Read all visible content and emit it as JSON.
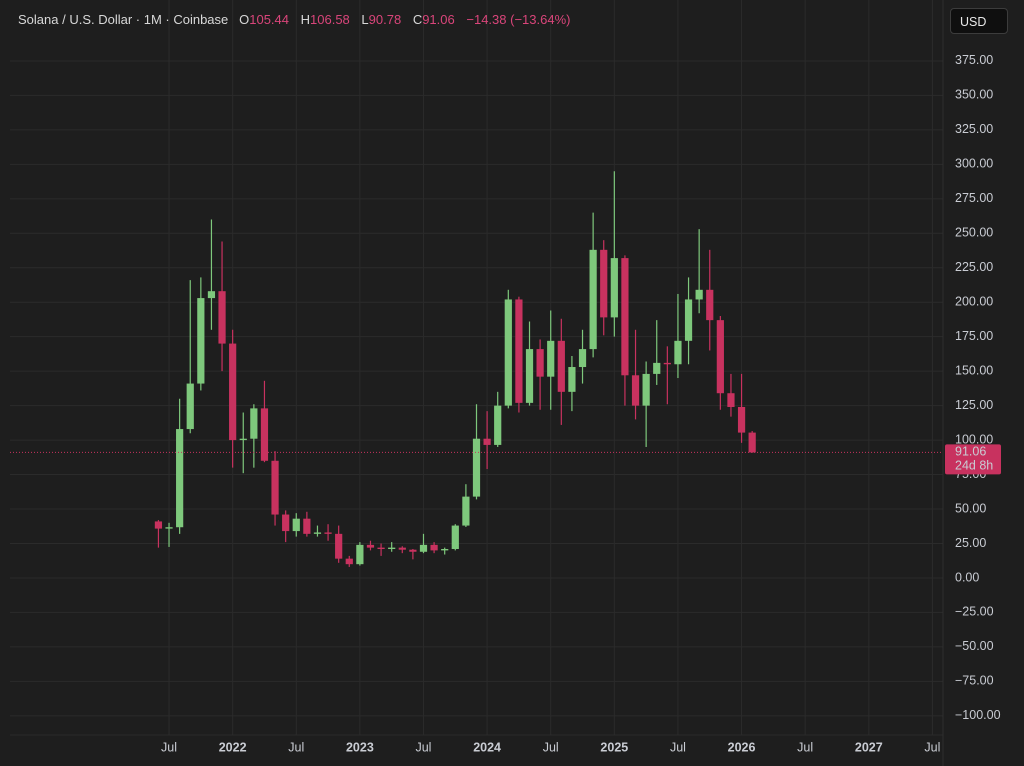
{
  "chart_data": {
    "type": "candlestick",
    "legend": {
      "title": "Solana / U.S. Dollar · 1M · Coinbase",
      "fields": [
        {
          "label": "O",
          "value": 105.44
        },
        {
          "label": "H",
          "value": 106.58
        },
        {
          "label": "L",
          "value": 90.78
        },
        {
          "label": "C",
          "value": 91.06
        }
      ],
      "change": "−14.38 (−13.64%)"
    },
    "currency": "USD",
    "price_label": {
      "value": 91.06,
      "label": "91.06",
      "countdown": "24d 8h"
    },
    "up_color": "#7ec87c",
    "down_color": "#c8325f",
    "grid": true,
    "x": [
      "2021-06",
      "2021-07",
      "2021-08",
      "2021-09",
      "2021-10",
      "2021-11",
      "2021-12",
      "2022-01",
      "2022-02",
      "2022-03",
      "2022-04",
      "2022-05",
      "2022-06",
      "2022-07",
      "2022-08",
      "2022-09",
      "2022-10",
      "2022-11",
      "2022-12",
      "2023-01",
      "2023-02",
      "2023-03",
      "2023-04",
      "2023-05",
      "2023-06",
      "2023-07",
      "2023-08",
      "2023-09",
      "2023-10",
      "2023-11",
      "2023-12",
      "2024-01",
      "2024-02",
      "2024-03",
      "2024-04",
      "2024-05",
      "2024-06",
      "2024-07",
      "2024-08",
      "2024-09",
      "2024-10",
      "2024-11",
      "2024-12",
      "2025-01",
      "2025-02",
      "2025-03",
      "2025-04",
      "2025-05",
      "2025-06",
      "2025-07",
      "2025-08",
      "2025-09",
      "2025-10",
      "2025-11",
      "2025-12",
      "2026-01",
      "2026-02"
    ],
    "open": [
      41,
      35.8,
      36.8,
      108,
      141,
      203,
      208,
      170,
      100,
      101,
      123,
      85,
      46,
      34,
      43,
      32,
      33,
      32,
      14,
      10,
      24,
      22,
      21,
      22,
      20.5,
      19,
      24,
      20,
      21,
      38,
      59,
      101,
      96.5,
      125,
      202,
      127,
      166,
      146,
      172,
      135,
      153,
      166,
      238,
      189,
      232,
      147,
      125,
      148,
      156,
      155,
      172,
      202,
      209,
      187,
      134,
      124,
      105.44
    ],
    "high": [
      42,
      40,
      130,
      216,
      218,
      260,
      244,
      180,
      120,
      126,
      143,
      92,
      49,
      47,
      48,
      38,
      39,
      38,
      16,
      26,
      27,
      25,
      26,
      23,
      21,
      32,
      26,
      22,
      39,
      68,
      126,
      121,
      135,
      209,
      204,
      186,
      173,
      194,
      188,
      161,
      180,
      265,
      245,
      295,
      234,
      180,
      157,
      187,
      168,
      206,
      218,
      253,
      238,
      190,
      148,
      148,
      106.58
    ],
    "low": [
      22,
      22.5,
      32,
      105,
      136,
      180,
      150,
      80,
      76,
      80,
      84,
      38,
      26,
      30,
      30,
      30,
      27,
      11,
      8,
      9,
      20,
      16,
      19,
      18,
      13.5,
      18,
      18,
      17,
      20,
      37,
      57,
      79,
      95,
      123,
      120,
      125,
      122,
      122,
      111,
      121,
      141,
      160,
      176,
      175,
      125,
      115,
      95,
      140,
      126,
      145,
      155,
      192,
      165,
      122,
      117,
      98,
      90.78
    ],
    "close": [
      35.8,
      36.8,
      108,
      141,
      203,
      208,
      170,
      100,
      101,
      123,
      85,
      46,
      34,
      43,
      32,
      33,
      32,
      14,
      10,
      24,
      22,
      21,
      22,
      20.5,
      19,
      24,
      20,
      21,
      38,
      59,
      101,
      96.5,
      125,
      202,
      127,
      166,
      146,
      172,
      135,
      153,
      166,
      238,
      189,
      232,
      147,
      125,
      148,
      156,
      155,
      172,
      202,
      209,
      187,
      134,
      124,
      105.44,
      91.06
    ],
    "xlim": [
      "2020-04",
      "2027-08"
    ],
    "xticks": [
      {
        "value": "2021-07",
        "label": "Jul"
      },
      {
        "value": "2022-01",
        "label": "2022"
      },
      {
        "value": "2022-07",
        "label": "Jul"
      },
      {
        "value": "2023-01",
        "label": "2023"
      },
      {
        "value": "2023-07",
        "label": "Jul"
      },
      {
        "value": "2024-01",
        "label": "2024"
      },
      {
        "value": "2024-07",
        "label": "Jul"
      },
      {
        "value": "2025-01",
        "label": "2025"
      },
      {
        "value": "2025-07",
        "label": "Jul"
      },
      {
        "value": "2026-01",
        "label": "2026"
      },
      {
        "value": "2026-07",
        "label": "Jul"
      },
      {
        "value": "2027-01",
        "label": "2027"
      },
      {
        "value": "2027-07",
        "label": "Jul"
      }
    ],
    "ylim": [
      -113.9,
      419.2
    ],
    "yticks": [
      {
        "value": -100,
        "label": "−100.00"
      },
      {
        "value": -75,
        "label": "−75.00"
      },
      {
        "value": -50,
        "label": "−50.00"
      },
      {
        "value": -25,
        "label": "−25.00"
      },
      {
        "value": 0,
        "label": "0.00"
      },
      {
        "value": 25,
        "label": "25.00"
      },
      {
        "value": 50,
        "label": "50.00"
      },
      {
        "value": 75,
        "label": "75.00"
      },
      {
        "value": 100,
        "label": "100.00"
      },
      {
        "value": 125,
        "label": "125.00"
      },
      {
        "value": 150,
        "label": "150.00"
      },
      {
        "value": 175,
        "label": "175.00"
      },
      {
        "value": 200,
        "label": "200.00"
      },
      {
        "value": 225,
        "label": "225.00"
      },
      {
        "value": 250,
        "label": "250.00"
      },
      {
        "value": 275,
        "label": "275.00"
      },
      {
        "value": 300,
        "label": "300.00"
      },
      {
        "value": 325,
        "label": "325.00"
      },
      {
        "value": 350,
        "label": "350.00"
      },
      {
        "value": 375,
        "label": "375.00"
      }
    ]
  }
}
